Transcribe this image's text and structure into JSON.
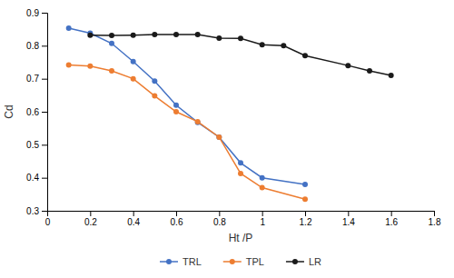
{
  "chart_data": {
    "type": "line",
    "xlabel": "Ht /P",
    "ylabel": "Cd",
    "xlim": [
      0,
      1.8
    ],
    "ylim": [
      0.3,
      0.9
    ],
    "xticks": [
      0,
      0.2,
      0.4,
      0.6,
      0.8,
      1,
      1.2,
      1.4,
      1.6,
      1.8
    ],
    "yticks": [
      0.3,
      0.4,
      0.5,
      0.6,
      0.7,
      0.8,
      0.9
    ],
    "marker": "circle",
    "legend": "bottom",
    "series": [
      {
        "name": "TRL",
        "color": "#4472C4",
        "x": [
          0.1,
          0.2,
          0.3,
          0.4,
          0.5,
          0.6,
          0.7,
          0.8,
          0.9,
          1.0,
          1.2
        ],
        "values": [
          0.853,
          0.838,
          0.807,
          0.752,
          0.693,
          0.62,
          0.568,
          0.523,
          0.445,
          0.4,
          0.38
        ]
      },
      {
        "name": "TPL",
        "color": "#ED7D31",
        "x": [
          0.1,
          0.2,
          0.3,
          0.4,
          0.5,
          0.6,
          0.7,
          0.8,
          0.9,
          1.0,
          1.2
        ],
        "values": [
          0.742,
          0.738,
          0.724,
          0.7,
          0.648,
          0.6,
          0.57,
          0.523,
          0.413,
          0.37,
          0.335
        ]
      },
      {
        "name": "LR",
        "color": "#1a1a1a",
        "x": [
          0.2,
          0.3,
          0.4,
          0.5,
          0.6,
          0.7,
          0.8,
          0.9,
          1.0,
          1.1,
          1.2,
          1.4,
          1.5,
          1.6
        ],
        "values": [
          0.832,
          0.831,
          0.832,
          0.834,
          0.834,
          0.834,
          0.823,
          0.822,
          0.803,
          0.8,
          0.77,
          0.74,
          0.724,
          0.71
        ]
      }
    ]
  }
}
